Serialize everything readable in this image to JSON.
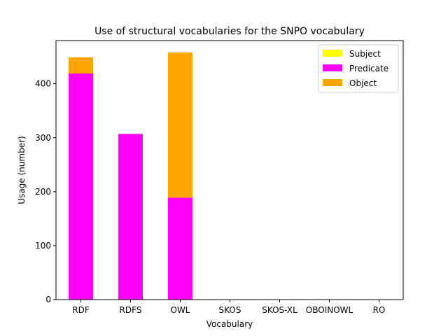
{
  "chart_data": {
    "type": "bar",
    "stacked": true,
    "title": "Use of structural vocabularies for the SNPO vocabulary",
    "xlabel": "Vocabulary",
    "ylabel": "Usage (number)",
    "categories": [
      "RDF",
      "RDFS",
      "OWL",
      "SKOS",
      "SKOS-XL",
      "OBOINOWL",
      "RO"
    ],
    "ylim": [
      0,
      480
    ],
    "yticks": [
      0,
      100,
      200,
      300,
      400
    ],
    "grid": false,
    "legend_position": "top-right",
    "series": [
      {
        "name": "Subject",
        "color": "#ffff00",
        "values": [
          0,
          0,
          0,
          0,
          0,
          0,
          0
        ]
      },
      {
        "name": "Predicate",
        "color": "#ff00ff",
        "values": [
          419,
          307,
          189,
          0,
          0,
          0,
          0
        ]
      },
      {
        "name": "Object",
        "color": "#ffa500",
        "values": [
          30,
          0,
          269,
          0,
          0,
          0,
          0
        ]
      }
    ]
  }
}
